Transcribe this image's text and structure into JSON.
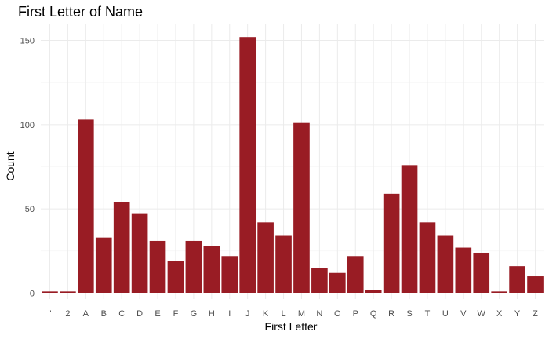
{
  "chart_data": {
    "type": "bar",
    "title": "First Letter of Name",
    "xlabel": "First Letter",
    "ylabel": "Count",
    "categories": [
      "\"",
      "2",
      "A",
      "B",
      "C",
      "D",
      "E",
      "F",
      "G",
      "H",
      "I",
      "J",
      "K",
      "L",
      "M",
      "N",
      "O",
      "P",
      "Q",
      "R",
      "S",
      "T",
      "U",
      "V",
      "W",
      "X",
      "Y",
      "Z"
    ],
    "values": [
      1,
      1,
      103,
      33,
      54,
      47,
      31,
      19,
      31,
      28,
      22,
      152,
      42,
      34,
      101,
      15,
      12,
      22,
      2,
      59,
      76,
      42,
      34,
      27,
      24,
      1,
      16,
      10
    ],
    "ylim": [
      0,
      160
    ],
    "yticks": [
      0,
      50,
      100,
      150
    ],
    "grid": true,
    "bar_color": "#991C24",
    "legend": "none"
  }
}
